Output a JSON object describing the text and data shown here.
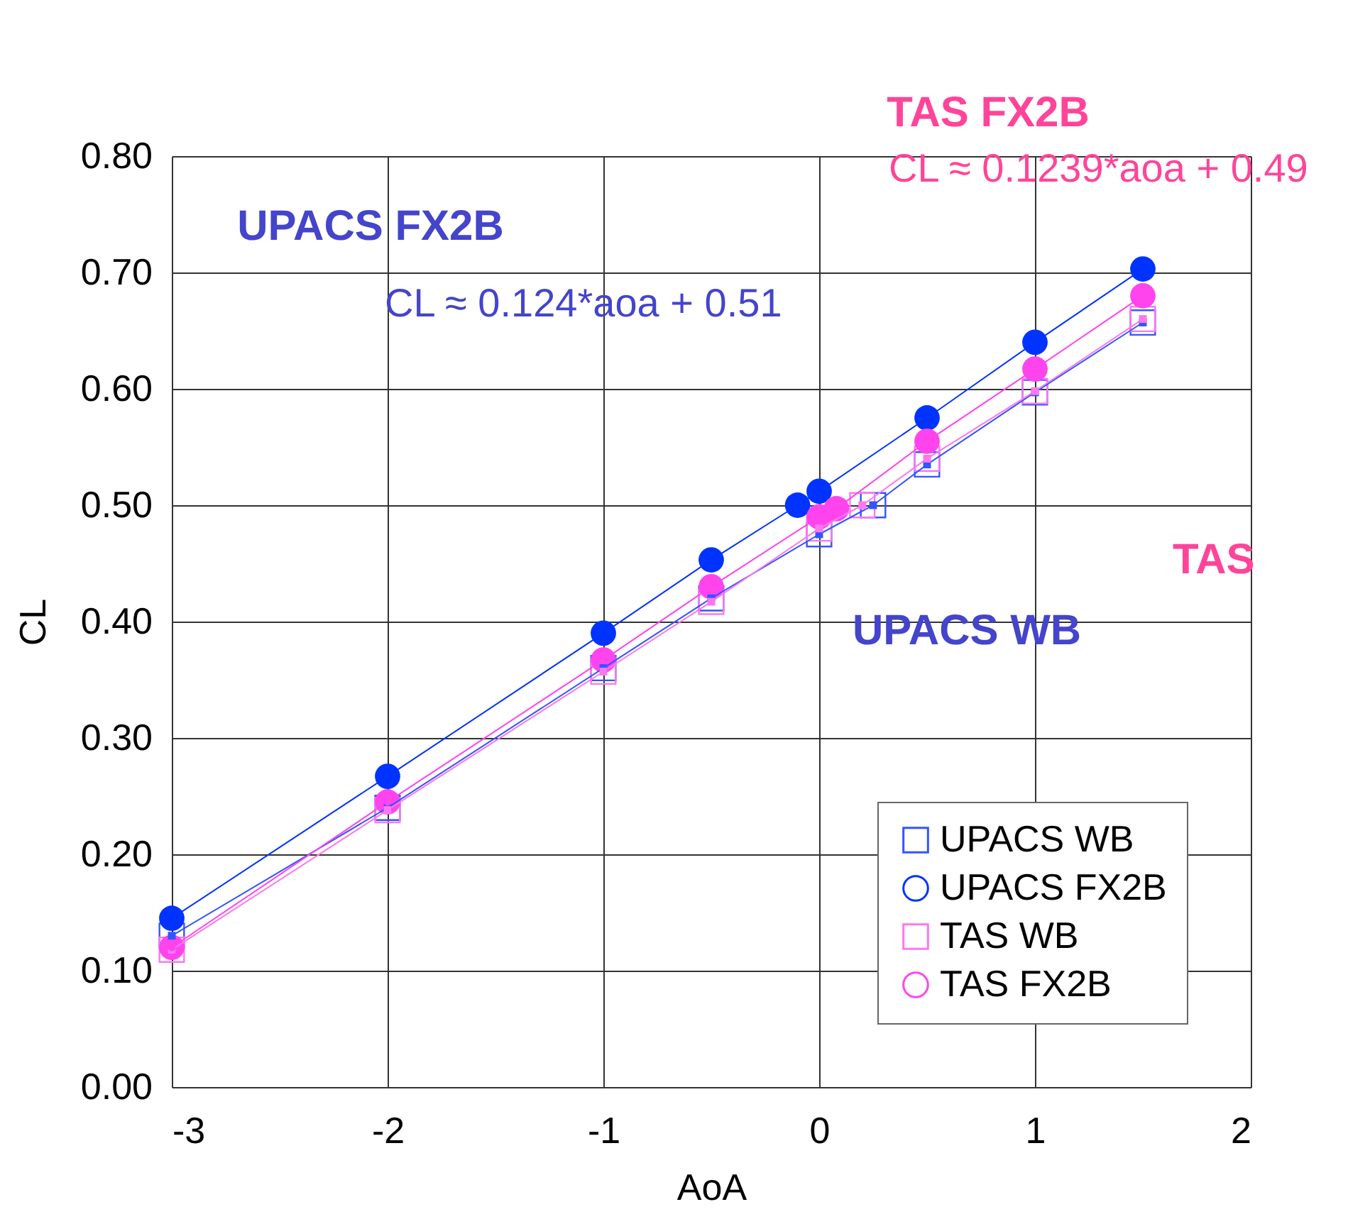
{
  "chart_data": {
    "type": "line",
    "xlabel": "AoA",
    "ylabel": "CL",
    "xlim": [
      -3,
      2
    ],
    "xticks": [
      -3,
      -2,
      -1,
      0,
      1,
      2
    ],
    "ylim": [
      0,
      0.8
    ],
    "yticks": [
      {
        "value": 0,
        "label": "0.00"
      },
      {
        "value": 0.1,
        "label": "0.10"
      },
      {
        "value": 0.2,
        "label": "0.20"
      },
      {
        "value": 0.3,
        "label": "0.30"
      },
      {
        "value": 0.4,
        "label": "0.40"
      },
      {
        "value": 0.5,
        "label": "0.50"
      },
      {
        "value": 0.6,
        "label": "0.60"
      },
      {
        "value": 0.7,
        "label": "0.70"
      },
      {
        "value": 0.8,
        "label": "0.80"
      }
    ],
    "grid": true,
    "legend": "bottom right",
    "line_style": "solid",
    "series": [
      {
        "name": "UPACS WB",
        "color": "#3355ff",
        "marker": "square",
        "x": [
          -3,
          -2,
          -1,
          -0.5,
          0,
          0.25,
          0.5,
          1,
          1.5
        ],
        "values": [
          0.13,
          0.24,
          0.36,
          0.42,
          0.475,
          0.5,
          0.535,
          0.597,
          0.657
        ]
      },
      {
        "name": "UPACS FX2B",
        "color": "#0033ff",
        "marker": "circle",
        "x": [
          -3,
          -2,
          -1,
          -0.5,
          -0.1,
          0,
          0.5,
          1,
          1.5
        ],
        "values": [
          0.145,
          0.267,
          0.39,
          0.453,
          0.5,
          0.512,
          0.575,
          0.64,
          0.703
        ]
      },
      {
        "name": "TAS WB",
        "color": "#ff77ee",
        "marker": "square",
        "x": [
          -3,
          -2,
          -1,
          -0.5,
          0,
          0.2,
          0.5,
          1,
          1.5
        ],
        "values": [
          0.118,
          0.238,
          0.357,
          0.417,
          0.48,
          0.5,
          0.54,
          0.598,
          0.66
        ]
      },
      {
        "name": "TAS FX2B",
        "color": "#ff44ee",
        "marker": "circle",
        "x": [
          -3,
          -2,
          -1,
          -0.5,
          0,
          0.08,
          0.5,
          1,
          1.5
        ],
        "values": [
          0.12,
          0.245,
          0.367,
          0.43,
          0.49,
          0.497,
          0.555,
          0.617,
          0.68
        ]
      }
    ],
    "annotations": [
      "TAS  FX2B",
      "CL ≈ 0.1239*aoa + 0.49",
      "UPACS FX2B",
      "CL ≈ 0.124*aoa + 0.51",
      "TAS",
      "UPACS WB"
    ]
  }
}
